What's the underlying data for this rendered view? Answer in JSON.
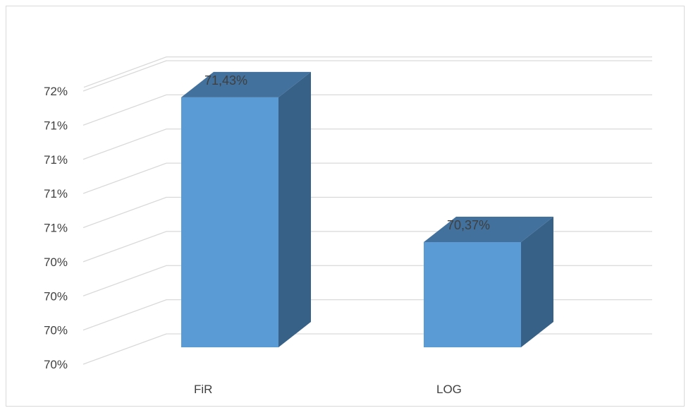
{
  "chart_data": {
    "type": "bar",
    "style": "3d-column",
    "categories": [
      "FiR",
      "LOG"
    ],
    "values": [
      71.43,
      70.37
    ],
    "data_labels": [
      "71,43%",
      "70,37%"
    ],
    "tick_labels": [
      "70%",
      "70%",
      "70%",
      "70%",
      "71%",
      "71%",
      "71%",
      "71%",
      "72%"
    ],
    "ylim": [
      69.6,
      71.6
    ],
    "grid": true,
    "legend": "none",
    "colors": {
      "front": "#5b9bd5",
      "top": "#41719c",
      "side": "#376187",
      "grid": "#d9d9d9",
      "text": "#404040"
    }
  }
}
